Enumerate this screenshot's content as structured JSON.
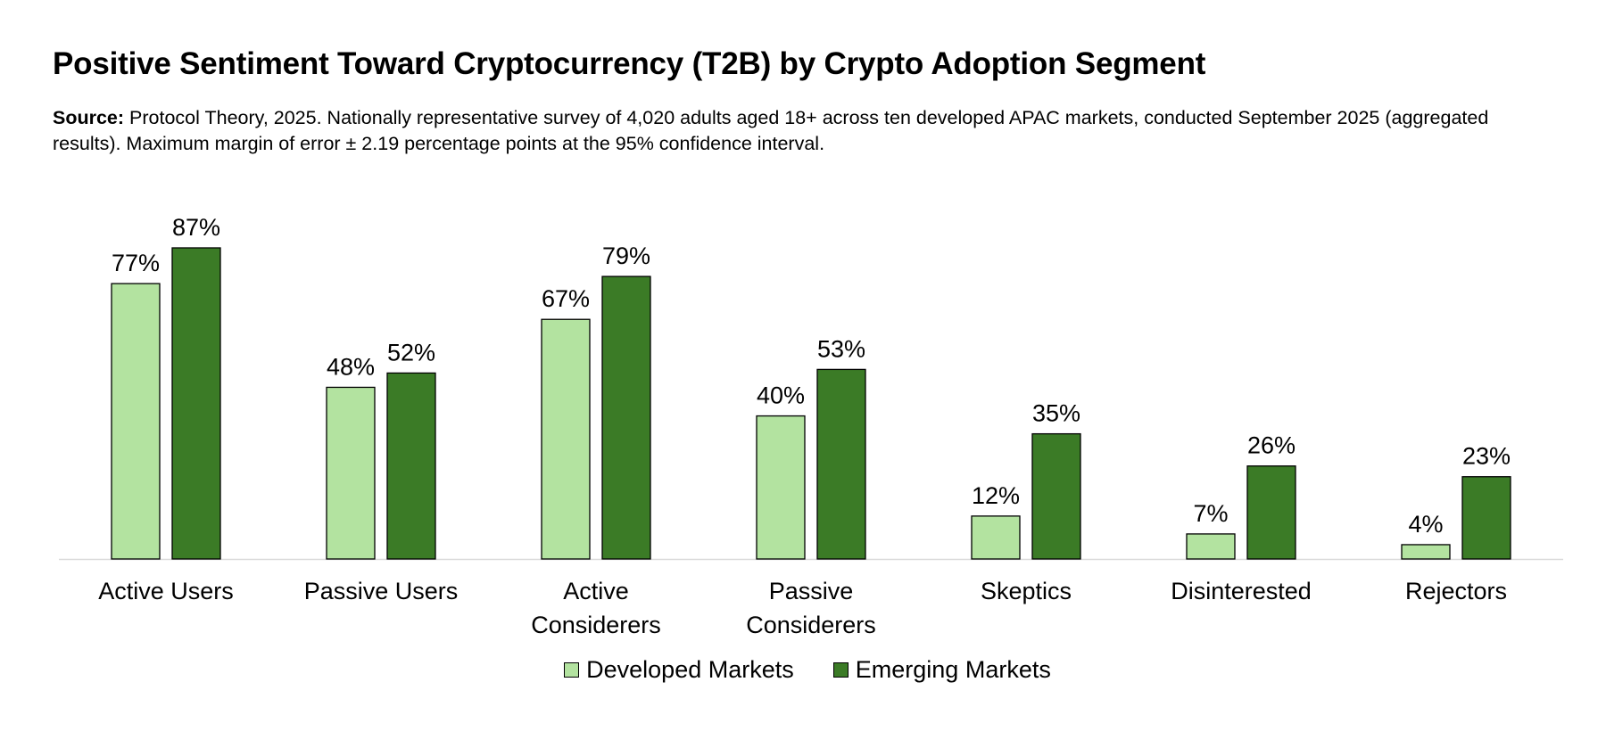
{
  "title": "Positive Sentiment Toward Cryptocurrency (T2B) by Crypto Adoption Segment",
  "source": {
    "label": "Source:",
    "text": "Protocol Theory, 2025. Nationally representative survey of 4,020 adults aged 18+ across ten developed APAC markets, conducted September 2025 (aggregated results). Maximum margin of error ± 2.19 percentage points at the 95% confidence interval."
  },
  "colors": {
    "developed": "#b3e3a0",
    "emerging": "#3b7b26"
  },
  "chart_data": {
    "type": "bar",
    "categories": [
      [
        "Active Users"
      ],
      [
        "Passive Users"
      ],
      [
        "Active",
        "Considerers"
      ],
      [
        "Passive",
        "Considerers"
      ],
      [
        "Skeptics"
      ],
      [
        "Disinterested"
      ],
      [
        "Rejectors"
      ]
    ],
    "series": [
      {
        "name": "Developed Markets",
        "values": [
          77,
          48,
          67,
          40,
          12,
          7,
          4
        ]
      },
      {
        "name": "Emerging Markets",
        "values": [
          87,
          52,
          79,
          53,
          35,
          26,
          23
        ]
      }
    ],
    "value_suffix": "%",
    "ylim": [
      0,
      100
    ],
    "xlabel": "",
    "ylabel": "",
    "grid": false,
    "legend_position": "bottom"
  },
  "legend": {
    "items": [
      "Developed Markets",
      "Emerging Markets"
    ]
  }
}
